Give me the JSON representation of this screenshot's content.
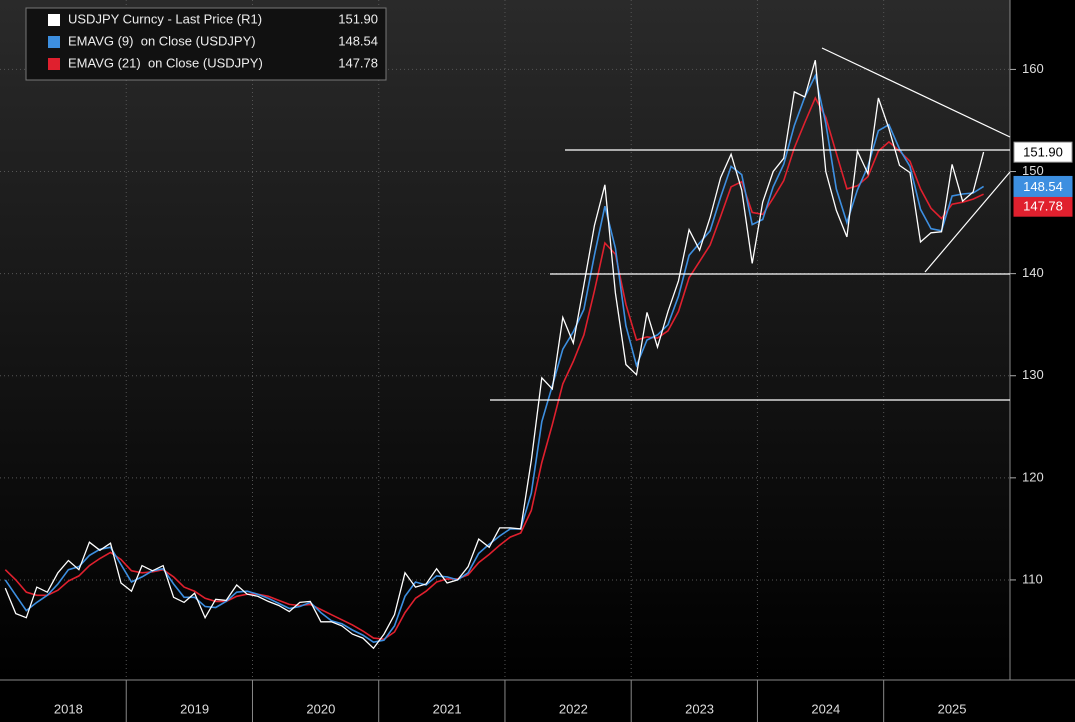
{
  "chart_data": {
    "type": "line",
    "categories": [
      null,
      null,
      null,
      null,
      null,
      null,
      "2018",
      null,
      null,
      null,
      null,
      null,
      null,
      null,
      null,
      null,
      null,
      null,
      "2019",
      null,
      null,
      null,
      null,
      null,
      null,
      null,
      null,
      null,
      null,
      null,
      "2020",
      null,
      null,
      null,
      null,
      null,
      null,
      null,
      null,
      null,
      null,
      null,
      "2021",
      null,
      null,
      null,
      null,
      null,
      null,
      null,
      null,
      null,
      null,
      null,
      "2022",
      null,
      null,
      null,
      null,
      null,
      null,
      null,
      null,
      null,
      null,
      null,
      "2023",
      null,
      null,
      null,
      null,
      null,
      null,
      null,
      null,
      null,
      null,
      null,
      "2024",
      null,
      null,
      null,
      null,
      null,
      null,
      null,
      null,
      null,
      null,
      null,
      "2025",
      null,
      null,
      null
    ],
    "series": [
      {
        "name": "USDJPY Curncy - Last Price (R1)",
        "color": "#ffffff",
        "last_label": "151.90",
        "values": [
          109.2,
          106.7,
          106.3,
          109.3,
          108.8,
          110.7,
          111.9,
          111.0,
          113.7,
          112.9,
          113.6,
          109.7,
          108.9,
          111.4,
          110.9,
          111.4,
          108.3,
          107.8,
          108.7,
          106.3,
          108.1,
          108.0,
          109.5,
          108.6,
          108.4,
          107.9,
          107.5,
          106.9,
          107.8,
          107.9,
          105.9,
          105.9,
          105.5,
          104.7,
          104.3,
          103.3,
          104.7,
          106.6,
          110.7,
          109.3,
          109.6,
          111.1,
          109.7,
          110.0,
          111.3,
          114.0,
          113.2,
          115.1,
          115.1,
          115.0,
          121.7,
          129.8,
          128.7,
          135.7,
          133.2,
          138.9,
          144.7,
          148.7,
          138.1,
          131.1,
          130.1,
          136.2,
          132.8,
          136.3,
          139.3,
          144.3,
          142.3,
          145.5,
          149.4,
          151.7,
          148.2,
          141.0,
          147.0,
          150.0,
          151.3,
          157.8,
          157.3,
          160.9,
          150.0,
          146.2,
          143.6,
          152.0,
          149.8,
          157.2,
          154.2,
          150.6,
          149.9,
          143.1,
          144.0,
          144.1,
          150.7,
          147.1,
          148.0,
          151.9
        ]
      },
      {
        "name": "EMAVG (9)  on Close (USDJPY)",
        "color": "#3d8fe0",
        "last_label": "148.54",
        "values": [
          110.0,
          108.5,
          107.0,
          107.8,
          108.5,
          109.6,
          111.0,
          111.3,
          112.4,
          113.0,
          113.2,
          111.5,
          109.8,
          110.3,
          110.9,
          111.1,
          109.6,
          108.3,
          108.3,
          107.4,
          107.3,
          107.9,
          108.8,
          108.9,
          108.6,
          108.2,
          107.7,
          107.2,
          107.4,
          107.8,
          106.8,
          106.0,
          105.7,
          105.1,
          104.6,
          103.9,
          104.1,
          105.5,
          108.4,
          109.8,
          109.5,
          110.4,
          110.3,
          110.0,
          110.7,
          112.6,
          113.5,
          114.3,
          115.0,
          115.0,
          118.5,
          125.5,
          129.0,
          132.6,
          134.3,
          136.5,
          141.8,
          146.6,
          142.5,
          134.9,
          131.0,
          133.5,
          134.0,
          135.0,
          137.8,
          141.8,
          143.0,
          144.2,
          147.5,
          150.5,
          149.7,
          144.8,
          145.3,
          148.5,
          150.7,
          154.5,
          157.3,
          159.4,
          154.7,
          148.3,
          145.0,
          148.2,
          150.5,
          154.0,
          154.6,
          152.2,
          150.5,
          146.3,
          144.4,
          144.2,
          147.6,
          147.8,
          147.9,
          148.54
        ]
      },
      {
        "name": "EMAVG (21)  on Close (USDJPY)",
        "color": "#e0202e",
        "last_label": "147.78",
        "values": [
          111.0,
          110.0,
          108.8,
          108.5,
          108.5,
          109.0,
          109.9,
          110.4,
          111.4,
          112.1,
          112.7,
          112.0,
          110.9,
          110.7,
          110.8,
          111.0,
          110.3,
          109.3,
          108.9,
          108.2,
          107.9,
          107.9,
          108.4,
          108.6,
          108.6,
          108.4,
          108.0,
          107.6,
          107.5,
          107.6,
          107.1,
          106.6,
          106.1,
          105.6,
          105.0,
          104.3,
          104.2,
          104.9,
          106.8,
          108.2,
          108.9,
          109.8,
          110.1,
          110.1,
          110.5,
          111.7,
          112.5,
          113.4,
          114.2,
          114.6,
          116.8,
          121.5,
          125.2,
          129.2,
          131.4,
          134.0,
          138.3,
          143.0,
          141.9,
          137.0,
          133.5,
          133.8,
          133.7,
          134.4,
          136.3,
          139.6,
          141.2,
          142.8,
          145.6,
          148.5,
          149.0,
          146.0,
          145.8,
          147.4,
          149.1,
          152.3,
          154.8,
          157.2,
          155.3,
          151.8,
          148.3,
          148.6,
          149.5,
          152.0,
          152.9,
          152.0,
          151.0,
          148.3,
          146.4,
          145.4,
          146.8,
          147.0,
          147.3,
          147.78
        ]
      }
    ],
    "ylim": [
      100.2,
      166.8
    ],
    "yticks": [
      110,
      120,
      130,
      140,
      150,
      160
    ],
    "grid": true
  }
}
